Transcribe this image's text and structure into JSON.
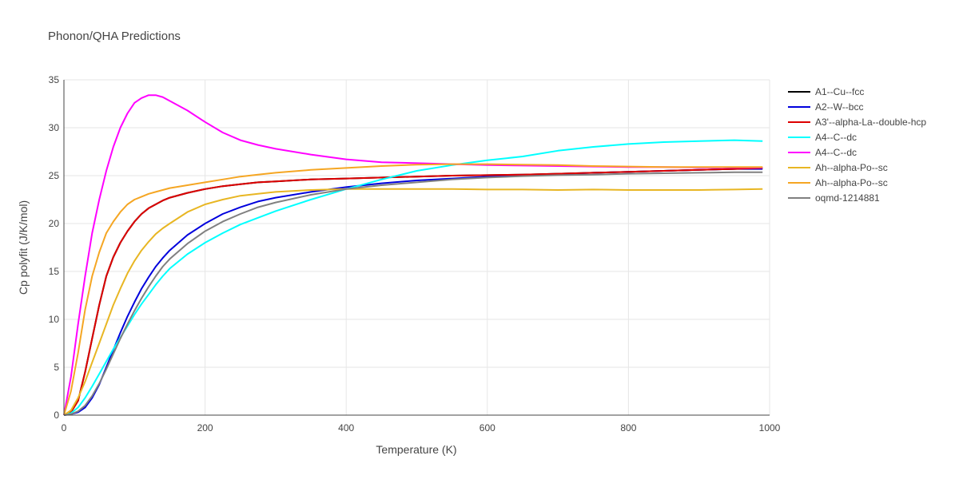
{
  "chart_data": {
    "type": "line",
    "title": "Phonon/QHA Predictions",
    "xlabel": "Temperature (K)",
    "ylabel": "Cp polyfit (J/K/mol)",
    "xlim": [
      0,
      1000
    ],
    "ylim": [
      0,
      35
    ],
    "xticks": [
      0,
      200,
      400,
      600,
      800,
      1000
    ],
    "yticks": [
      0,
      5,
      10,
      15,
      20,
      25,
      30,
      35
    ],
    "grid": true,
    "legend_position": "top-right",
    "x": [
      0,
      10,
      20,
      30,
      40,
      50,
      60,
      70,
      80,
      90,
      100,
      110,
      120,
      130,
      140,
      150,
      175,
      200,
      225,
      250,
      275,
      300,
      350,
      400,
      450,
      500,
      550,
      600,
      650,
      700,
      750,
      800,
      850,
      900,
      950,
      990
    ],
    "series": [
      {
        "name": "A1--Cu--fcc",
        "color": "#000000",
        "values": [
          0,
          0.3,
          1.5,
          4.5,
          8.0,
          11.5,
          14.5,
          16.5,
          18.0,
          19.2,
          20.2,
          21.0,
          21.6,
          22.0,
          22.4,
          22.7,
          23.2,
          23.6,
          23.9,
          24.1,
          24.3,
          24.4,
          24.6,
          24.7,
          24.8,
          24.9,
          25.0,
          25.05,
          25.1,
          25.2,
          25.3,
          25.4,
          25.5,
          25.6,
          25.7,
          25.8
        ]
      },
      {
        "name": "A2--W--bcc",
        "color": "#0000dd",
        "values": [
          0,
          0.1,
          0.3,
          0.8,
          1.8,
          3.2,
          5.0,
          6.8,
          8.6,
          10.3,
          11.8,
          13.2,
          14.4,
          15.5,
          16.4,
          17.2,
          18.8,
          20.0,
          21.0,
          21.7,
          22.3,
          22.7,
          23.3,
          23.8,
          24.2,
          24.5,
          24.7,
          24.9,
          25.0,
          25.15,
          25.3,
          25.4,
          25.5,
          25.6,
          25.7,
          25.7
        ]
      },
      {
        "name": "A3'--alpha-La--double-hcp",
        "color": "#dd0000",
        "values": [
          0,
          0.3,
          1.5,
          4.5,
          8.0,
          11.5,
          14.5,
          16.5,
          18.0,
          19.2,
          20.2,
          21.0,
          21.6,
          22.0,
          22.4,
          22.7,
          23.2,
          23.6,
          23.9,
          24.1,
          24.3,
          24.4,
          24.6,
          24.7,
          24.8,
          24.9,
          25.0,
          25.05,
          25.1,
          25.2,
          25.3,
          25.4,
          25.5,
          25.6,
          25.7,
          25.8
        ]
      },
      {
        "name": "A4--C--dc",
        "color": "#00ffff",
        "values": [
          0,
          0.2,
          0.8,
          1.8,
          3.0,
          4.3,
          5.6,
          6.9,
          8.1,
          9.3,
          10.5,
          11.6,
          12.6,
          13.6,
          14.5,
          15.3,
          16.8,
          18.0,
          19.0,
          19.9,
          20.6,
          21.3,
          22.5,
          23.6,
          24.6,
          25.5,
          26.1,
          26.6,
          27.0,
          27.6,
          28.0,
          28.3,
          28.5,
          28.6,
          28.7,
          28.6
        ]
      },
      {
        "name": "A4--C--dc",
        "color": "#ff00ff",
        "values": [
          0,
          4.0,
          9.5,
          14.5,
          19.0,
          22.5,
          25.5,
          28.0,
          30.0,
          31.5,
          32.6,
          33.1,
          33.4,
          33.4,
          33.2,
          32.8,
          31.8,
          30.6,
          29.5,
          28.7,
          28.2,
          27.8,
          27.2,
          26.7,
          26.4,
          26.3,
          26.2,
          26.1,
          26.05,
          26.0,
          25.95,
          25.9,
          25.9,
          25.85,
          25.85,
          25.85
        ]
      },
      {
        "name": "Ah--alpha-Po--sc",
        "color": "#e8b623",
        "values": [
          0,
          0.5,
          1.8,
          3.5,
          5.5,
          7.5,
          9.5,
          11.5,
          13.2,
          14.8,
          16.1,
          17.2,
          18.1,
          18.9,
          19.5,
          20.0,
          21.2,
          22.0,
          22.5,
          22.9,
          23.1,
          23.3,
          23.5,
          23.6,
          23.6,
          23.6,
          23.6,
          23.55,
          23.55,
          23.5,
          23.55,
          23.5,
          23.5,
          23.5,
          23.55,
          23.6
        ]
      },
      {
        "name": "Ah--alpha-Po--sc",
        "color": "#f5a623",
        "values": [
          0,
          2.5,
          6.5,
          11.0,
          14.5,
          17.0,
          19.0,
          20.2,
          21.2,
          22.0,
          22.5,
          22.8,
          23.1,
          23.3,
          23.5,
          23.7,
          24.0,
          24.3,
          24.6,
          24.9,
          25.1,
          25.3,
          25.6,
          25.8,
          26.0,
          26.15,
          26.2,
          26.2,
          26.15,
          26.1,
          26.0,
          25.95,
          25.9,
          25.9,
          25.9,
          25.9
        ]
      },
      {
        "name": "oqmd-1214881",
        "color": "#808080",
        "values": [
          0,
          0.1,
          0.4,
          1.0,
          2.0,
          3.3,
          4.8,
          6.4,
          8.0,
          9.5,
          10.9,
          12.2,
          13.4,
          14.5,
          15.5,
          16.3,
          17.9,
          19.2,
          20.2,
          21.0,
          21.7,
          22.2,
          23.0,
          23.6,
          24.0,
          24.3,
          24.6,
          24.8,
          24.95,
          25.05,
          25.1,
          25.2,
          25.25,
          25.3,
          25.35,
          25.35
        ]
      }
    ]
  }
}
